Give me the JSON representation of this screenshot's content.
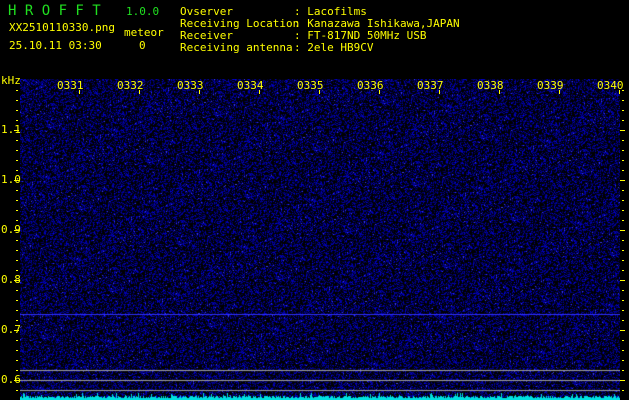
{
  "app": {
    "title": "H R O F F T",
    "version": "1.0.0"
  },
  "file": {
    "name": "XX2510110330.png",
    "datetime": "25.10.11 03:30"
  },
  "meteor": {
    "label": "meteor",
    "count": "0"
  },
  "info": [
    {
      "label": "Ovserver",
      "value": ": Lacofilms"
    },
    {
      "label": "Receiving Location",
      "value": ": Kanazawa Ishikawa,JAPAN"
    },
    {
      "label": "Receiver",
      "value": ": FT-817ND 50MHz USB"
    },
    {
      "label": "Receiving antenna",
      "value": ": 2ele HB9CV"
    }
  ],
  "axis": {
    "unit": "kHz",
    "freq_labels": [
      "1.1",
      "1.0",
      "0.9",
      "0.8",
      "0.7",
      "0.6"
    ],
    "time_labels": [
      "0331",
      "0332",
      "0333",
      "0334",
      "0335",
      "0336",
      "0337",
      "0338",
      "0339",
      "0340"
    ]
  },
  "colors": {
    "text": "#ffff00",
    "title": "#20e020",
    "noise": "#1010c0",
    "spectrum": "#00e0e0"
  }
}
